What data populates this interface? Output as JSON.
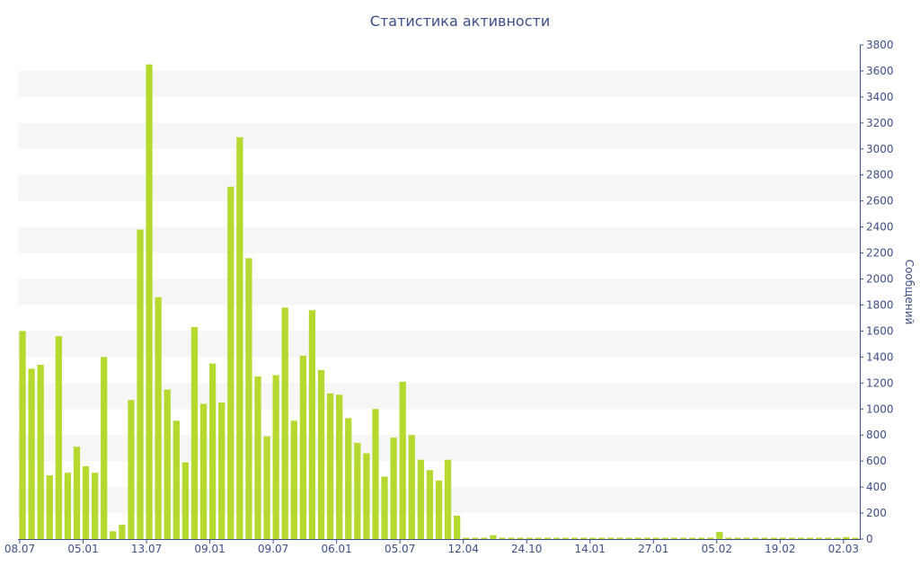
{
  "chart_data": {
    "type": "bar",
    "title": "Статистика активности",
    "ylabel": "Сообщений",
    "xlabel": "",
    "ylim": [
      0,
      3800
    ],
    "y_ticks": [
      0,
      200,
      400,
      600,
      800,
      1000,
      1200,
      1400,
      1600,
      1800,
      2000,
      2200,
      2400,
      2600,
      2800,
      3000,
      3200,
      3400,
      3600,
      3800
    ],
    "x_tick_labels": [
      "08.07",
      "05.01",
      "13.07",
      "09.01",
      "09.07",
      "06.01",
      "05.07",
      "12.04",
      "24.10",
      "14.01",
      "27.01",
      "05.02",
      "19.02",
      "02.03"
    ],
    "x_tick_bar_index": [
      0,
      7,
      14,
      21,
      28,
      35,
      42,
      49,
      56,
      63,
      70,
      77,
      84,
      91
    ],
    "grid": "alternating horizontal bands",
    "legend": "none",
    "y_axis_position": "right",
    "colors": {
      "bar": "#b5d92e",
      "band": "#f6f6f6",
      "axis": "#3d4f88",
      "title": "#3d4f88"
    },
    "values": [
      1600,
      1310,
      1340,
      490,
      1560,
      510,
      710,
      560,
      510,
      1400,
      60,
      110,
      1070,
      2380,
      3650,
      1860,
      1150,
      910,
      590,
      1630,
      1040,
      1350,
      1050,
      2710,
      3090,
      2160,
      1250,
      790,
      1260,
      1780,
      910,
      1410,
      1760,
      1300,
      1120,
      1110,
      930,
      740,
      660,
      1000,
      480,
      780,
      1210,
      800,
      610,
      530,
      450,
      610,
      180,
      10,
      10,
      10,
      30,
      10,
      10,
      10,
      10,
      10,
      10,
      10,
      10,
      10,
      10,
      10,
      10,
      10,
      10,
      10,
      10,
      10,
      10,
      10,
      10,
      10,
      10,
      10,
      10,
      55,
      10,
      10,
      10,
      10,
      10,
      10,
      10,
      10,
      10,
      10,
      10,
      10,
      10,
      15,
      10
    ]
  }
}
